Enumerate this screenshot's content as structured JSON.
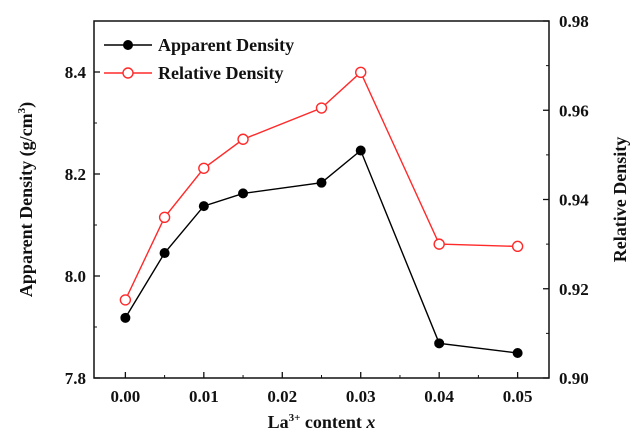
{
  "chart_data": {
    "type": "line",
    "x": [
      0.0,
      0.005,
      0.01,
      0.015,
      0.025,
      0.03,
      0.04,
      0.05
    ],
    "xlabel": {
      "base": "La",
      "sup": "3+",
      "rest": " content ",
      "var": "x"
    },
    "xlim": [
      -0.004,
      0.054
    ],
    "xticks": [
      0.0,
      0.01,
      0.02,
      0.03,
      0.04,
      0.05
    ],
    "xtick_labels": [
      "0.00",
      "0.01",
      "0.02",
      "0.03",
      "0.04",
      "0.05"
    ],
    "y_left": {
      "label": {
        "main": "Apparent Density (g/cm",
        "sup": "3",
        "end": ")"
      },
      "lim": [
        7.8,
        8.5
      ],
      "ticks": [
        7.8,
        8.0,
        8.2,
        8.4
      ],
      "tick_labels": [
        "7.8",
        "8.0",
        "8.2",
        "8.4"
      ]
    },
    "y_right": {
      "label": "Relative Density",
      "lim": [
        0.9,
        0.98
      ],
      "ticks": [
        0.9,
        0.92,
        0.94,
        0.96,
        0.98
      ],
      "tick_labels": [
        "0.90",
        "0.92",
        "0.94",
        "0.96",
        "0.98"
      ]
    },
    "series": [
      {
        "name": "Apparent Density",
        "axis": "left",
        "color": "#000000",
        "marker": "filled-circle",
        "values": [
          7.918,
          8.045,
          8.137,
          8.162,
          8.183,
          8.246,
          7.868,
          7.849
        ]
      },
      {
        "name": "Relative Density",
        "axis": "right",
        "color": "#ff2a2a",
        "marker": "open-circle",
        "values": [
          0.9175,
          0.936,
          0.947,
          0.9535,
          0.9605,
          0.9685,
          0.93,
          0.9295
        ]
      }
    ],
    "legend": "top-left",
    "grid": false
  }
}
